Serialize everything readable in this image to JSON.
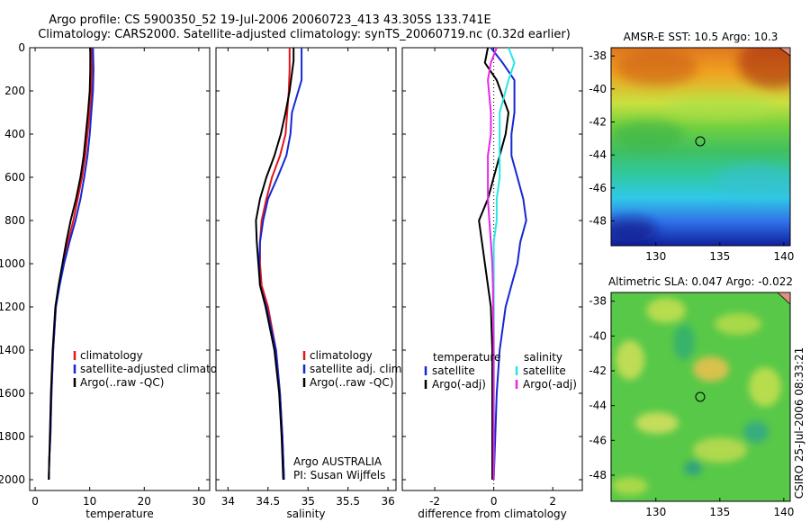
{
  "figure": {
    "title_line1": "Argo profile: CS 5900350_52 19-Jul-2006 20060723_413 43.305S 133.741E",
    "title_line2": "Climatology: CARS2000. Satellite-adjusted climatology: synTS_20060719.nc (0.32d earlier)",
    "credit": "CSIRO 25-Jul-2006 08:33:21",
    "colors": {
      "climatology": "#e6141e",
      "satellite": "#1428d2",
      "argo": "#000000",
      "sat_cyan": "#28e6e6",
      "adj_magenta": "#e628e6"
    }
  },
  "chart_data": [
    {
      "type": "line",
      "xlabel": "temperature",
      "xlim": [
        -1,
        32
      ],
      "ylim": [
        2050,
        0
      ],
      "xticks": [
        0,
        10,
        20,
        30
      ],
      "yticks": [
        0,
        200,
        400,
        600,
        800,
        1000,
        1200,
        1400,
        1600,
        1800,
        2000
      ],
      "series": [
        {
          "name": "climatology",
          "color": "#e6141e",
          "x": [
            10.3,
            10.4,
            10.3,
            10.0,
            9.6,
            9.2,
            8.6,
            7.8,
            7.0,
            6.0,
            5.2,
            4.4,
            3.8,
            3.3,
            3.0,
            2.8,
            2.6,
            2.5
          ],
          "y": [
            0,
            100,
            200,
            300,
            400,
            500,
            600,
            700,
            800,
            900,
            1000,
            1100,
            1200,
            1400,
            1600,
            1800,
            1900,
            2000
          ]
        },
        {
          "name": "satellite-adjusted climatology",
          "color": "#1428d2",
          "x": [
            10.6,
            10.7,
            10.6,
            10.3,
            10.0,
            9.6,
            9.0,
            8.3,
            7.4,
            6.3,
            5.3,
            4.5,
            3.8,
            3.3,
            3.0,
            2.8,
            2.6,
            2.5
          ],
          "y": [
            0,
            100,
            200,
            300,
            400,
            500,
            600,
            700,
            800,
            900,
            1000,
            1100,
            1200,
            1400,
            1600,
            1800,
            1900,
            2000
          ]
        },
        {
          "name": "Argo(..raw -QC)",
          "color": "#000000",
          "x": [
            10.1,
            10.1,
            10.0,
            9.7,
            9.3,
            8.9,
            8.3,
            7.5,
            6.5,
            5.7,
            5.0,
            4.3,
            3.7,
            3.2,
            2.9,
            2.7,
            2.6,
            2.5
          ],
          "y": [
            0,
            100,
            200,
            300,
            400,
            500,
            600,
            700,
            800,
            900,
            1000,
            1100,
            1200,
            1400,
            1600,
            1800,
            1900,
            2000
          ]
        }
      ],
      "legend": {
        "placement": "bottom-right",
        "items": [
          "climatology",
          "satellite-adjusted climatology",
          "Argo(..raw -QC)"
        ]
      }
    },
    {
      "type": "line",
      "xlabel": "salinity",
      "xlim": [
        33.85,
        36.1
      ],
      "ylim": [
        2050,
        0
      ],
      "xticks": [
        34,
        34.5,
        35,
        35.5,
        36
      ],
      "xticklabels": [
        "34",
        "34.5",
        "35",
        "35.5",
        "36"
      ],
      "series": [
        {
          "name": "climatology",
          "color": "#e6141e",
          "x": [
            34.77,
            34.77,
            34.76,
            34.74,
            34.72,
            34.65,
            34.55,
            34.48,
            34.42,
            34.4,
            34.4,
            34.42,
            34.5,
            34.6,
            34.65,
            34.68,
            34.7
          ],
          "y": [
            0,
            100,
            200,
            300,
            400,
            500,
            600,
            700,
            800,
            900,
            1000,
            1100,
            1200,
            1400,
            1600,
            1800,
            2000
          ]
        },
        {
          "name": "satellite adj. clim.",
          "color": "#1428d2",
          "x": [
            34.92,
            34.92,
            34.92,
            34.8,
            34.78,
            34.73,
            34.62,
            34.5,
            34.44,
            34.4,
            34.39,
            34.4,
            34.48,
            34.6,
            34.65,
            34.68,
            34.7
          ],
          "y": [
            0,
            70,
            150,
            300,
            400,
            500,
            600,
            700,
            800,
            900,
            1000,
            1100,
            1200,
            1400,
            1600,
            1800,
            2000
          ]
        },
        {
          "name": "Argo(..raw -QC)",
          "color": "#000000",
          "x": [
            34.82,
            34.82,
            34.77,
            34.72,
            34.66,
            34.58,
            34.48,
            34.4,
            34.35,
            34.36,
            34.38,
            34.4,
            34.47,
            34.58,
            34.64,
            34.67,
            34.69
          ],
          "y": [
            0,
            60,
            200,
            300,
            400,
            500,
            600,
            700,
            800,
            900,
            1000,
            1100,
            1200,
            1400,
            1600,
            1800,
            2000
          ]
        }
      ],
      "legend": {
        "placement": "bottom-right",
        "items": [
          "climatology",
          "satellite adj. clim.",
          "Argo(..raw -QC)"
        ]
      },
      "annotation_lines": [
        "Argo AUSTRALIA",
        "PI: Susan Wijffels"
      ]
    },
    {
      "type": "line",
      "xlabel": "difference from climatology",
      "xlim": [
        -3.1,
        3.0
      ],
      "ylim": [
        2050,
        0
      ],
      "xticks": [
        -2,
        0,
        2
      ],
      "zero_line": true,
      "series": [
        {
          "name": "temperature satellite",
          "color": "#1428d2",
          "x": [
            -0.1,
            0.3,
            0.7,
            0.7,
            0.6,
            0.6,
            0.8,
            1.0,
            1.1,
            0.9,
            0.8,
            0.6,
            0.4,
            0.2,
            0.1,
            0.05,
            0.0
          ],
          "y": [
            0,
            70,
            150,
            300,
            400,
            500,
            600,
            700,
            800,
            900,
            1000,
            1100,
            1200,
            1400,
            1600,
            1800,
            2000
          ]
        },
        {
          "name": "temperature Argo(-adj)",
          "color": "#000000",
          "x": [
            -0.2,
            -0.3,
            0.1,
            0.5,
            0.4,
            0.2,
            0.0,
            -0.2,
            -0.5,
            -0.4,
            -0.3,
            -0.2,
            -0.1,
            -0.05,
            -0.05,
            -0.05,
            -0.05
          ],
          "y": [
            0,
            70,
            150,
            300,
            400,
            500,
            600,
            700,
            800,
            900,
            1000,
            1100,
            1200,
            1400,
            1600,
            1800,
            2000
          ]
        },
        {
          "name": "salinity satellite",
          "color": "#28e6e6",
          "x": [
            0.5,
            0.7,
            0.5,
            0.2,
            0.2,
            0.2,
            0.2,
            0.1,
            0.1,
            0.0,
            0.0,
            0.0,
            0.0,
            0.0,
            0.0,
            0.0,
            0.0
          ],
          "y": [
            0,
            70,
            150,
            300,
            400,
            500,
            600,
            700,
            800,
            900,
            1000,
            1100,
            1200,
            1400,
            1600,
            1800,
            2000
          ]
        },
        {
          "name": "salinity Argo(-adj)",
          "color": "#e628e6",
          "x": [
            0.1,
            -0.1,
            -0.2,
            -0.1,
            -0.1,
            -0.2,
            -0.2,
            -0.2,
            -0.15,
            -0.1,
            -0.05,
            -0.03,
            -0.02,
            0.0,
            0.0,
            0.0,
            0.0
          ],
          "y": [
            0,
            70,
            150,
            300,
            400,
            500,
            600,
            700,
            800,
            900,
            1000,
            1100,
            1200,
            1400,
            1600,
            1800,
            2000
          ]
        }
      ],
      "legend": {
        "placement": "bottom",
        "col_headers": [
          "temperature",
          "salinity"
        ],
        "items": [
          "satellite",
          "Argo(-adj)",
          "satellite",
          "Argo(-adj)"
        ]
      }
    },
    {
      "type": "heatmap",
      "title": "AMSR-E SST: 10.5 Argo: 10.3",
      "xlim": [
        126.5,
        140.5
      ],
      "ylim": [
        -49.5,
        -37.5
      ],
      "xticks": [
        130,
        135,
        140
      ],
      "yticks": [
        -38,
        -40,
        -42,
        -44,
        -46,
        -48
      ],
      "marker": {
        "lon": 133.741,
        "lat": -43.305
      }
    },
    {
      "type": "heatmap",
      "title": "Altimetric SLA: 0.047 Argo: -0.022",
      "xlim": [
        126.5,
        140.5
      ],
      "ylim": [
        -49.5,
        -37.5
      ],
      "xticks": [
        130,
        135,
        140
      ],
      "yticks": [
        -38,
        -40,
        -42,
        -44,
        -46,
        -48
      ],
      "marker": {
        "lon": 133.741,
        "lat": -43.305
      }
    }
  ]
}
